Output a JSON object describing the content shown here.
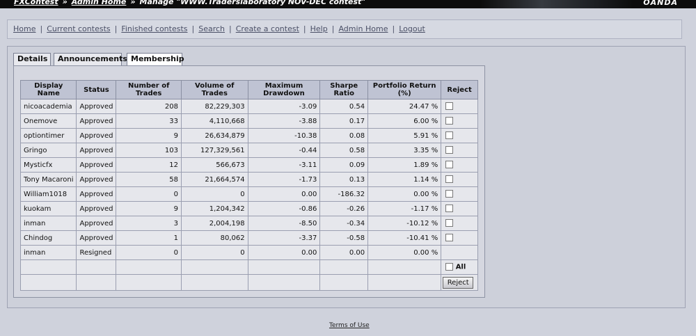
{
  "header": {
    "crumb_1": "FXContest",
    "crumb_2": "Admin Home",
    "crumb_3": "Manage \"WWW.Traderslaboratory NOV-DEC contest\"",
    "separator": "»",
    "brand": "OANDA"
  },
  "nav": {
    "items": [
      "Home",
      "Current contests",
      "Finished contests",
      "Search",
      "Create a contest",
      "Help",
      "Admin Home",
      "Logout"
    ],
    "separator": "|"
  },
  "tabs": [
    {
      "label": "Details"
    },
    {
      "label": "Announcements"
    },
    {
      "label": "Membership"
    }
  ],
  "membership": {
    "columns": [
      "Display Name",
      "Status",
      "Number of Trades",
      "Volume of Trades",
      "Maximum Drawdown",
      "Sharpe Ratio",
      "Portfolio Return (%)",
      "Reject"
    ],
    "rows": [
      {
        "name": "nicoacademia",
        "status": "Approved",
        "trades": "208",
        "volume": "82,229,303",
        "drawdown": "-3.09",
        "sharpe": "0.54",
        "return": "24.47 %",
        "checkbox": true
      },
      {
        "name": "Onemove",
        "status": "Approved",
        "trades": "33",
        "volume": "4,110,668",
        "drawdown": "-3.88",
        "sharpe": "0.17",
        "return": "6.00 %",
        "checkbox": true
      },
      {
        "name": "optiontimer",
        "status": "Approved",
        "trades": "9",
        "volume": "26,634,879",
        "drawdown": "-10.38",
        "sharpe": "0.08",
        "return": "5.91 %",
        "checkbox": true
      },
      {
        "name": "Gringo",
        "status": "Approved",
        "trades": "103",
        "volume": "127,329,561",
        "drawdown": "-0.44",
        "sharpe": "0.58",
        "return": "3.35 %",
        "checkbox": true
      },
      {
        "name": "Mysticfx",
        "status": "Approved",
        "trades": "12",
        "volume": "566,673",
        "drawdown": "-3.11",
        "sharpe": "0.09",
        "return": "1.89 %",
        "checkbox": true
      },
      {
        "name": "Tony Macaroni",
        "status": "Approved",
        "trades": "58",
        "volume": "21,664,574",
        "drawdown": "-1.73",
        "sharpe": "0.13",
        "return": "1.14 %",
        "checkbox": true
      },
      {
        "name": "William1018",
        "status": "Approved",
        "trades": "0",
        "volume": "0",
        "drawdown": "0.00",
        "sharpe": "-186.32",
        "return": "0.00 %",
        "checkbox": true
      },
      {
        "name": "kuokam",
        "status": "Approved",
        "trades": "9",
        "volume": "1,204,342",
        "drawdown": "-0.86",
        "sharpe": "-0.26",
        "return": "-1.17 %",
        "checkbox": true
      },
      {
        "name": "inman",
        "status": "Approved",
        "trades": "3",
        "volume": "2,004,198",
        "drawdown": "-8.50",
        "sharpe": "-0.34",
        "return": "-10.12 %",
        "checkbox": true
      },
      {
        "name": "Chindog",
        "status": "Approved",
        "trades": "1",
        "volume": "80,062",
        "drawdown": "-3.37",
        "sharpe": "-0.58",
        "return": "-10.41 %",
        "checkbox": true
      },
      {
        "name": "inman",
        "status": "Resigned",
        "trades": "0",
        "volume": "0",
        "drawdown": "0.00",
        "sharpe": "0.00",
        "return": "0.00 %",
        "checkbox": false
      }
    ],
    "select_all_label": "All",
    "reject_button": "Reject"
  },
  "footer": {
    "terms_link": "Terms of Use"
  }
}
